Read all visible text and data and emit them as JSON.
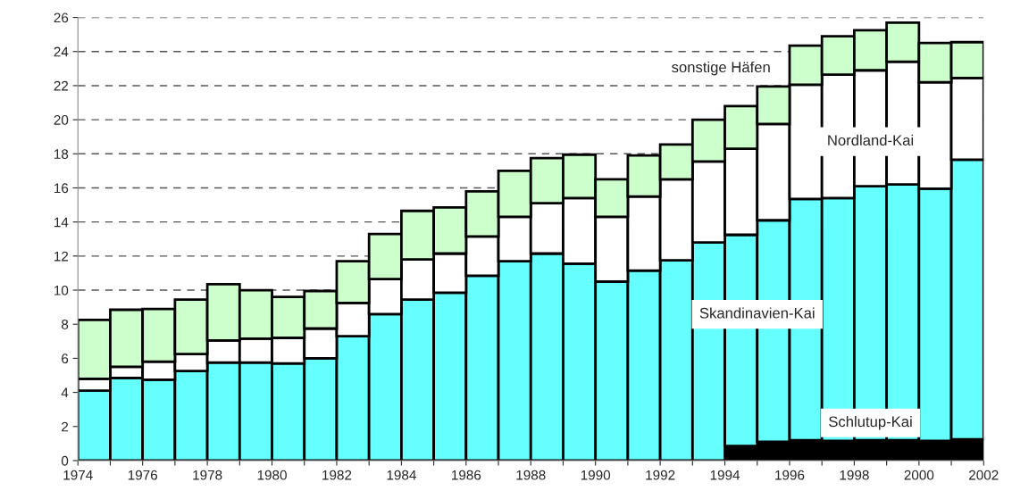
{
  "chart_data": {
    "type": "bar",
    "stacked": true,
    "grid": "y",
    "legend": false,
    "x": [
      1974.5,
      1975.5,
      1976.5,
      1977.5,
      1978.5,
      1979.5,
      1980.5,
      1981.5,
      1982.5,
      1983.5,
      1984.5,
      1985.5,
      1986.5,
      1987.5,
      1988.5,
      1989.5,
      1990.5,
      1991.5,
      1992.5,
      1993.5,
      1994.5,
      1995.5,
      1996.5,
      1997.5,
      1998.5,
      1999.5,
      2000.5,
      2001.5
    ],
    "xlim": [
      1974,
      2002
    ],
    "xticks": [
      1974,
      {
        "value": 1975,
        "label": null
      },
      1976,
      {
        "value": 1977,
        "label": null
      },
      1978,
      {
        "value": 1979,
        "label": null
      },
      1980,
      {
        "value": 1981,
        "label": null
      },
      1982,
      {
        "value": 1983,
        "label": null
      },
      1984,
      {
        "value": 1985,
        "label": null
      },
      1986,
      {
        "value": 1987,
        "label": null
      },
      1988,
      {
        "value": 1989,
        "label": null
      },
      1990,
      {
        "value": 1991,
        "label": null
      },
      1992,
      {
        "value": 1993,
        "label": null
      },
      1994,
      {
        "value": 1995,
        "label": null
      },
      1996,
      {
        "value": 1997,
        "label": null
      },
      1998,
      {
        "value": 1999,
        "label": null
      },
      2000,
      {
        "value": 2001,
        "label": null
      },
      2002
    ],
    "ylim": [
      0,
      26
    ],
    "yticks": [
      0,
      2,
      4,
      6,
      8,
      10,
      12,
      14,
      16,
      18,
      20,
      22,
      24,
      26
    ],
    "series": [
      {
        "name": "Schlutup-Kai",
        "color": "#000000",
        "values": [
          0,
          0,
          0,
          0,
          0,
          0,
          0,
          0,
          0,
          0,
          0,
          0,
          0,
          0,
          0,
          0,
          0,
          0,
          0,
          0,
          0.85,
          1.1,
          1.2,
          1.15,
          1.2,
          1.2,
          1.15,
          1.25
        ]
      },
      {
        "name": "Skandinavien-Kai",
        "color": "#66ffff",
        "values": [
          4.1,
          4.85,
          4.75,
          5.25,
          5.75,
          5.75,
          5.7,
          6.0,
          7.3,
          8.6,
          9.45,
          9.85,
          10.85,
          11.7,
          12.15,
          11.55,
          10.5,
          11.15,
          11.75,
          12.8,
          12.4,
          13.0,
          14.15,
          14.25,
          14.9,
          15.0,
          14.8,
          16.4
        ]
      },
      {
        "name": "Nordland-Kai",
        "color": "#ffffff",
        "values": [
          0.7,
          0.65,
          1.05,
          1.0,
          1.3,
          1.4,
          1.5,
          1.75,
          1.95,
          2.05,
          2.35,
          2.3,
          2.3,
          2.6,
          2.95,
          3.85,
          3.8,
          4.35,
          4.75,
          4.75,
          5.05,
          5.65,
          6.7,
          7.25,
          6.8,
          7.2,
          6.25,
          4.8
        ]
      },
      {
        "name": "sonstige Häfen",
        "color": "#ccffcc",
        "values": [
          3.45,
          3.35,
          3.1,
          3.2,
          3.3,
          2.85,
          2.4,
          2.2,
          2.45,
          2.65,
          2.85,
          2.7,
          2.65,
          2.7,
          2.65,
          2.55,
          2.2,
          2.4,
          2.05,
          2.45,
          2.5,
          2.2,
          2.3,
          2.25,
          2.35,
          2.3,
          2.3,
          2.1
        ]
      }
    ]
  }
}
